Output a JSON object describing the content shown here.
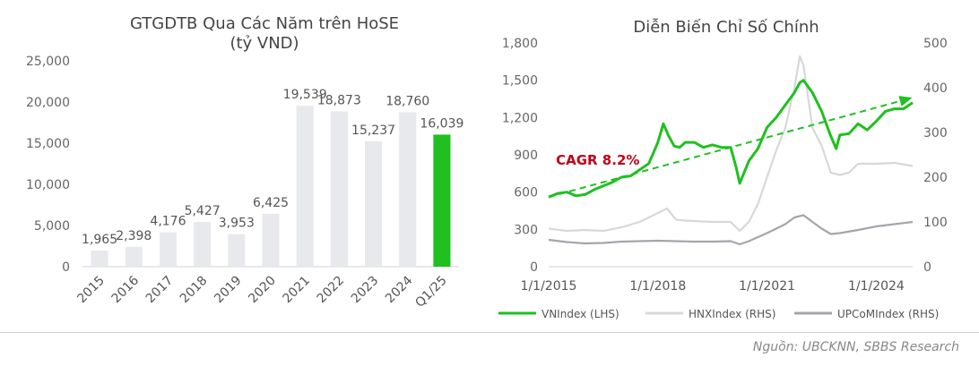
{
  "source": "Nguồn: UBCKNN, SBBS Research",
  "chart_data": [
    {
      "type": "bar",
      "title": "GTGDTB Qua Các Năm trên HoSE",
      "subtitle": "(tỷ VND)",
      "categories": [
        "2015",
        "2016",
        "2017",
        "2018",
        "2019",
        "2020",
        "2021",
        "2022",
        "2023",
        "2024",
        "Q1/25"
      ],
      "values": [
        1965,
        2398,
        4176,
        5427,
        3953,
        6425,
        19539,
        18873,
        15237,
        18760,
        16039
      ],
      "value_labels": [
        "1,965",
        "2,398",
        "4,176",
        "5,427",
        "3,953",
        "6,425",
        "19,539",
        "18,873",
        "15,237",
        "18,760",
        "16,039"
      ],
      "ylim": [
        0,
        25000
      ],
      "yticks": [
        "0",
        "5,000",
        "10,000",
        "15,000",
        "20,000",
        "25,000"
      ],
      "colors": {
        "bar": "#e8e9ec",
        "highlight": "#1fc01f"
      }
    },
    {
      "type": "line",
      "title": "Diễn Biến Chỉ Số Chính",
      "xticks": [
        "1/1/2015",
        "1/1/2018",
        "1/1/2021",
        "1/1/2024"
      ],
      "y_left_ticks": [
        "0",
        "300",
        "600",
        "900",
        "1,200",
        "1,500",
        "1,800"
      ],
      "y_right_ticks": [
        "0",
        "100",
        "200",
        "300",
        "400",
        "500"
      ],
      "y_left_lim": [
        0,
        1800
      ],
      "y_right_lim": [
        0,
        500
      ],
      "annotation": "CAGR 8.2%",
      "trend": {
        "from": [
          2015.0,
          560
        ],
        "to": [
          2025.0,
          1390
        ]
      },
      "series": [
        {
          "name": "VNIndex (LHS)",
          "axis": "left",
          "color": "#1fc01f",
          "x": [
            2015.0,
            2015.25,
            2015.5,
            2015.75,
            2016.0,
            2016.25,
            2016.5,
            2016.75,
            2017.0,
            2017.25,
            2017.5,
            2017.75,
            2018.0,
            2018.15,
            2018.3,
            2018.45,
            2018.6,
            2018.75,
            2019.0,
            2019.25,
            2019.5,
            2019.75,
            2020.0,
            2020.15,
            2020.25,
            2020.5,
            2020.75,
            2021.0,
            2021.25,
            2021.5,
            2021.75,
            2021.9,
            2022.0,
            2022.25,
            2022.5,
            2022.75,
            2022.9,
            2023.0,
            2023.25,
            2023.5,
            2023.75,
            2024.0,
            2024.25,
            2024.5,
            2024.75,
            2025.0
          ],
          "y": [
            560,
            590,
            600,
            570,
            580,
            620,
            650,
            680,
            720,
            730,
            780,
            830,
            1000,
            1150,
            1050,
            970,
            960,
            1000,
            1000,
            960,
            980,
            960,
            960,
            800,
            670,
            850,
            950,
            1120,
            1200,
            1300,
            1400,
            1480,
            1500,
            1400,
            1250,
            1050,
            950,
            1060,
            1070,
            1150,
            1100,
            1170,
            1250,
            1270,
            1270,
            1320
          ]
        },
        {
          "name": "HNXIndex (RHS)",
          "axis": "right",
          "color": "#d7d8dc",
          "x": [
            2015.0,
            2015.5,
            2016.0,
            2016.5,
            2017.0,
            2017.5,
            2018.0,
            2018.25,
            2018.5,
            2018.75,
            2019.0,
            2019.5,
            2020.0,
            2020.25,
            2020.5,
            2020.75,
            2021.0,
            2021.25,
            2021.5,
            2021.75,
            2021.9,
            2022.0,
            2022.25,
            2022.5,
            2022.75,
            2023.0,
            2023.25,
            2023.5,
            2023.75,
            2024.0,
            2024.5,
            2025.0
          ],
          "y": [
            85,
            80,
            82,
            80,
            88,
            100,
            120,
            130,
            105,
            103,
            102,
            100,
            100,
            80,
            100,
            140,
            200,
            260,
            310,
            400,
            470,
            450,
            310,
            270,
            210,
            205,
            210,
            230,
            230,
            230,
            232,
            225
          ]
        },
        {
          "name": "UPCoMIndex (RHS)",
          "axis": "right",
          "color": "#a4a6ab",
          "x": [
            2015.0,
            2015.5,
            2016.0,
            2016.5,
            2017.0,
            2017.5,
            2018.0,
            2018.5,
            2019.0,
            2019.5,
            2020.0,
            2020.25,
            2020.5,
            2020.75,
            2021.0,
            2021.25,
            2021.5,
            2021.75,
            2022.0,
            2022.25,
            2022.5,
            2022.75,
            2023.0,
            2023.5,
            2024.0,
            2024.5,
            2025.0
          ],
          "y": [
            60,
            55,
            52,
            53,
            56,
            57,
            58,
            57,
            56,
            56,
            57,
            50,
            57,
            66,
            75,
            85,
            95,
            110,
            115,
            100,
            85,
            73,
            75,
            82,
            90,
            95,
            100
          ]
        }
      ],
      "legend": "bottom",
      "colors": {
        "trend": "#1fc01f",
        "annotation": "#c0001a"
      }
    }
  ]
}
